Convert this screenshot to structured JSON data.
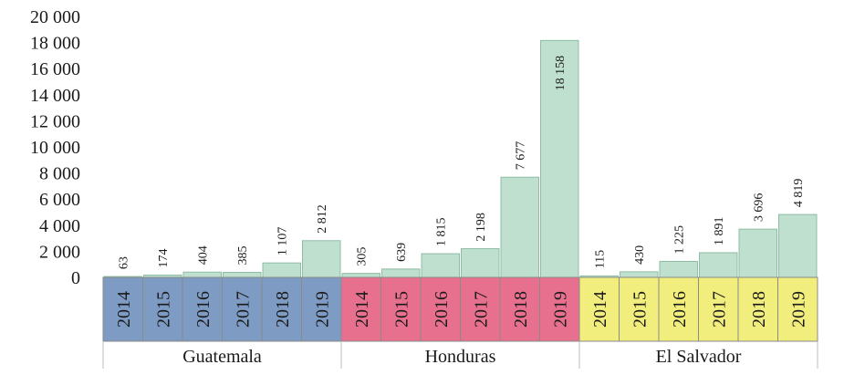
{
  "chart_data": {
    "type": "bar",
    "title": "",
    "xlabel": "",
    "ylabel": "",
    "ylim": [
      0,
      20000
    ],
    "yticks": [
      0,
      2000,
      4000,
      6000,
      8000,
      10000,
      12000,
      14000,
      16000,
      18000,
      20000
    ],
    "ytick_labels": [
      "0",
      "2 000",
      "4 000",
      "6 000",
      "8 000",
      "10 000",
      "12 000",
      "14 000",
      "16 000",
      "18 000",
      "20 000"
    ],
    "grid": false,
    "legend": "none",
    "bar_color": "#bfe0cf",
    "groups": [
      {
        "name": "Guatemala",
        "color": "#7e9bc4",
        "years": [
          "2014",
          "2015",
          "2016",
          "2017",
          "2018",
          "2019"
        ],
        "values": [
          63,
          174,
          404,
          385,
          1107,
          2812
        ],
        "labels": [
          "63",
          "174",
          "404",
          "385",
          "1 107",
          "2 812"
        ]
      },
      {
        "name": "Honduras",
        "color": "#e8708f",
        "years": [
          "2014",
          "2015",
          "2016",
          "2017",
          "2018",
          "2019"
        ],
        "values": [
          305,
          639,
          1815,
          2198,
          7677,
          18158
        ],
        "labels": [
          "305",
          "639",
          "1 815",
          "2 198",
          "7 677",
          "18 158"
        ]
      },
      {
        "name": "El Salvador",
        "color": "#f2ee7e",
        "years": [
          "2014",
          "2015",
          "2016",
          "2017",
          "2018",
          "2019"
        ],
        "values": [
          115,
          430,
          1225,
          1891,
          3696,
          4819
        ],
        "labels": [
          "115",
          "430",
          "1 225",
          "1 891",
          "3 696",
          "4 819"
        ]
      }
    ]
  }
}
